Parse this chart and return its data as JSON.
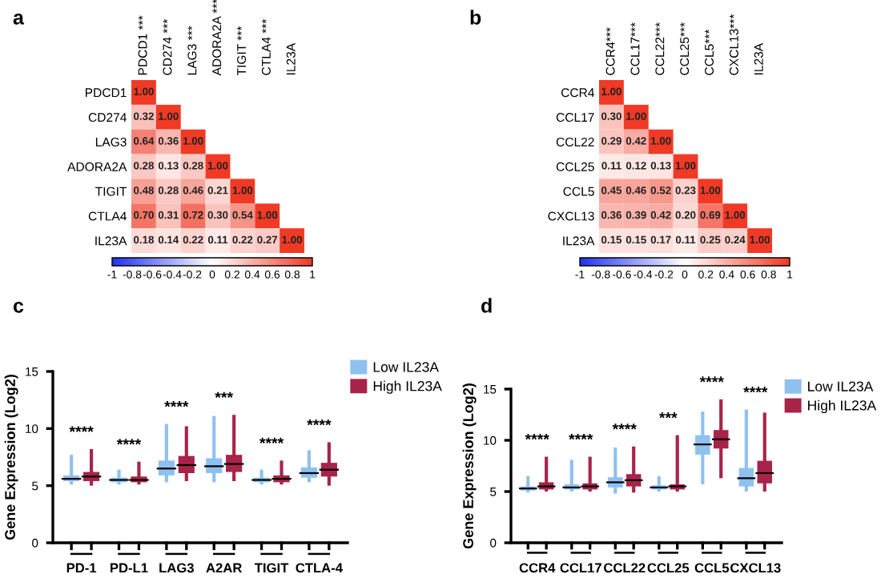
{
  "chart_data": [
    {
      "type": "heatmap",
      "title": "a",
      "categories": [
        "PDCD1 ***",
        "CD274 ***",
        "LAG3 ***",
        "ADORA2A ***",
        "TIGIT ***",
        "CTLA4 ***",
        "IL23A"
      ],
      "y_categories": [
        "PDCD1",
        "CD274",
        "LAG3",
        "ADORA2A",
        "TIGIT",
        "CTLA4",
        "IL23A"
      ],
      "cells": [
        [
          1,
          null,
          null,
          null,
          null,
          null,
          null
        ],
        [
          0.32,
          1,
          null,
          null,
          null,
          null,
          null
        ],
        [
          0.64,
          0.36,
          1,
          null,
          null,
          null,
          null
        ],
        [
          0.28,
          0.13,
          0.28,
          1,
          null,
          null,
          null
        ],
        [
          0.48,
          0.28,
          0.46,
          0.21,
          1,
          null,
          null
        ],
        [
          0.7,
          0.31,
          0.72,
          0.3,
          0.54,
          1,
          null
        ],
        [
          0.18,
          0.14,
          0.22,
          0.11,
          0.22,
          0.27,
          1
        ]
      ],
      "cell_labels": [
        [
          "1.00",
          null,
          null,
          null,
          null,
          null,
          null
        ],
        [
          "0.32",
          "1.00",
          null,
          null,
          null,
          null,
          null
        ],
        [
          "0.64",
          "0.36",
          "1.00",
          null,
          null,
          null,
          null
        ],
        [
          "0.28",
          "0.13",
          "0.28",
          "1.00",
          null,
          null,
          null
        ],
        [
          "0.48",
          "0.28",
          "0.46",
          "0.21",
          "1.00",
          null,
          null
        ],
        [
          "0.70",
          "0.31",
          "0.72",
          "0.30",
          "0.54",
          "1.00",
          null
        ],
        [
          "0.18",
          "0.14",
          "0.22",
          "0.11",
          "0.22",
          "0.27",
          "1.00"
        ]
      ],
      "clim": [
        -1,
        1
      ],
      "cticks": [
        -1,
        -0.8,
        -0.6,
        -0.4,
        -0.2,
        0,
        0.2,
        0.4,
        0.6,
        0.8,
        1
      ]
    },
    {
      "type": "heatmap",
      "title": "b",
      "categories": [
        "CCR4***",
        "CCL17***",
        "CCL22***",
        "CCL25***",
        "CCL5***",
        "CXCL13***",
        "IL23A"
      ],
      "y_categories": [
        "CCR4",
        "CCL17",
        "CCL22",
        "CCL25",
        "CCL5",
        "CXCL13",
        "IL23A"
      ],
      "cells": [
        [
          1,
          null,
          null,
          null,
          null,
          null,
          null
        ],
        [
          0.3,
          1,
          null,
          null,
          null,
          null,
          null
        ],
        [
          0.29,
          0.42,
          1,
          null,
          null,
          null,
          null
        ],
        [
          0.11,
          0.12,
          0.13,
          1,
          null,
          null,
          null
        ],
        [
          0.45,
          0.46,
          0.52,
          0.23,
          1,
          null,
          null
        ],
        [
          0.36,
          0.39,
          0.42,
          0.2,
          0.69,
          1,
          null
        ],
        [
          0.15,
          0.15,
          0.17,
          0.11,
          0.25,
          0.24,
          1
        ]
      ],
      "cell_labels": [
        [
          "1.00",
          null,
          null,
          null,
          null,
          null,
          null
        ],
        [
          "0.30",
          "1.00",
          null,
          null,
          null,
          null,
          null
        ],
        [
          "0.29",
          "0.42",
          "1.00",
          null,
          null,
          null,
          null
        ],
        [
          "0.11",
          "0.12",
          "0.13",
          "1.00",
          null,
          null,
          null
        ],
        [
          "0.45",
          "0.46",
          "0.52",
          "0.23",
          "1.00",
          null,
          null
        ],
        [
          "0.36",
          "0.39",
          "0.42",
          "0.20",
          "0.69",
          "1.00",
          null
        ],
        [
          "0.15",
          "0.15",
          "0.17",
          "0.11",
          "0.25",
          "0.24",
          "1.00"
        ]
      ],
      "clim": [
        -1,
        1
      ],
      "cticks": [
        -1,
        -0.8,
        -0.6,
        -0.4,
        -0.2,
        0,
        0.2,
        0.4,
        0.6,
        0.8,
        1
      ]
    },
    {
      "type": "box",
      "title": "c",
      "ylabel": "Gene Expression (Log2)",
      "categories": [
        "PD-1",
        "PD-L1",
        "LAG3",
        "A2AR",
        "TIGIT",
        "CTLA-4"
      ],
      "ylim": [
        0,
        15
      ],
      "yticks": [
        0,
        5,
        10,
        15
      ],
      "legend": "right",
      "series": [
        {
          "name": "Low IL23A",
          "color": "#8fc1f0",
          "boxes": [
            {
              "low": 5.1,
              "q1": 5.4,
              "median": 5.6,
              "q3": 5.9,
              "high": 7.7
            },
            {
              "low": 5.1,
              "q1": 5.3,
              "median": 5.5,
              "q3": 5.7,
              "high": 6.4
            },
            {
              "low": 5.3,
              "q1": 5.9,
              "median": 6.5,
              "q3": 7.2,
              "high": 10.4
            },
            {
              "low": 5.3,
              "q1": 6.1,
              "median": 6.7,
              "q3": 7.4,
              "high": 11.1
            },
            {
              "low": 5.1,
              "q1": 5.3,
              "median": 5.5,
              "q3": 5.7,
              "high": 6.4
            },
            {
              "low": 5.3,
              "q1": 5.7,
              "median": 6.1,
              "q3": 6.6,
              "high": 8.1
            }
          ]
        },
        {
          "name": "High IL23A",
          "color": "#a8234a",
          "boxes": [
            {
              "low": 5.0,
              "q1": 5.4,
              "median": 5.8,
              "q3": 6.2,
              "high": 8.2
            },
            {
              "low": 5.1,
              "q1": 5.3,
              "median": 5.5,
              "q3": 5.8,
              "high": 7.1
            },
            {
              "low": 5.4,
              "q1": 6.1,
              "median": 6.8,
              "q3": 7.6,
              "high": 10.2
            },
            {
              "low": 5.4,
              "q1": 6.2,
              "median": 6.9,
              "q3": 7.7,
              "high": 11.2
            },
            {
              "low": 5.1,
              "q1": 5.3,
              "median": 5.6,
              "q3": 5.9,
              "high": 7.2
            },
            {
              "low": 5.0,
              "q1": 5.8,
              "median": 6.4,
              "q3": 7.0,
              "high": 8.8
            }
          ]
        }
      ],
      "annotations": [
        "****",
        "****",
        "****",
        "***",
        "****",
        "****"
      ]
    },
    {
      "type": "box",
      "title": "d",
      "ylabel": "Gene Expression (Log2)",
      "categories": [
        "CCR4",
        "CCL17",
        "CCL22",
        "CCL25",
        "CCL5",
        "CXCL13"
      ],
      "ylim": [
        0,
        15
      ],
      "yticks": [
        0,
        5,
        10,
        15
      ],
      "legend": "right",
      "series": [
        {
          "name": "Low IL23A",
          "color": "#8fc1f0",
          "boxes": [
            {
              "low": 4.9,
              "q1": 5.1,
              "median": 5.3,
              "q3": 5.5,
              "high": 6.5
            },
            {
              "low": 5.0,
              "q1": 5.2,
              "median": 5.4,
              "q3": 5.7,
              "high": 8.1
            },
            {
              "low": 4.8,
              "q1": 5.4,
              "median": 5.9,
              "q3": 6.4,
              "high": 9.3
            },
            {
              "low": 5.0,
              "q1": 5.2,
              "median": 5.4,
              "q3": 5.6,
              "high": 6.5
            },
            {
              "low": 5.7,
              "q1": 8.6,
              "median": 9.6,
              "q3": 10.5,
              "high": 12.8
            },
            {
              "low": 5.0,
              "q1": 5.5,
              "median": 6.3,
              "q3": 7.3,
              "high": 13.0
            }
          ]
        },
        {
          "name": "High IL23A",
          "color": "#a8234a",
          "boxes": [
            {
              "low": 5.0,
              "q1": 5.2,
              "median": 5.5,
              "q3": 5.9,
              "high": 8.4
            },
            {
              "low": 5.0,
              "q1": 5.2,
              "median": 5.5,
              "q3": 5.8,
              "high": 8.4
            },
            {
              "low": 4.9,
              "q1": 5.5,
              "median": 6.1,
              "q3": 6.7,
              "high": 9.4
            },
            {
              "low": 5.0,
              "q1": 5.2,
              "median": 5.5,
              "q3": 5.7,
              "high": 10.5
            },
            {
              "low": 6.3,
              "q1": 9.2,
              "median": 10.1,
              "q3": 11.0,
              "high": 14.0
            },
            {
              "low": 5.0,
              "q1": 5.8,
              "median": 6.8,
              "q3": 8.0,
              "high": 12.7
            }
          ]
        }
      ],
      "annotations": [
        "****",
        "****",
        "****",
        "***",
        "****",
        "****"
      ]
    }
  ]
}
